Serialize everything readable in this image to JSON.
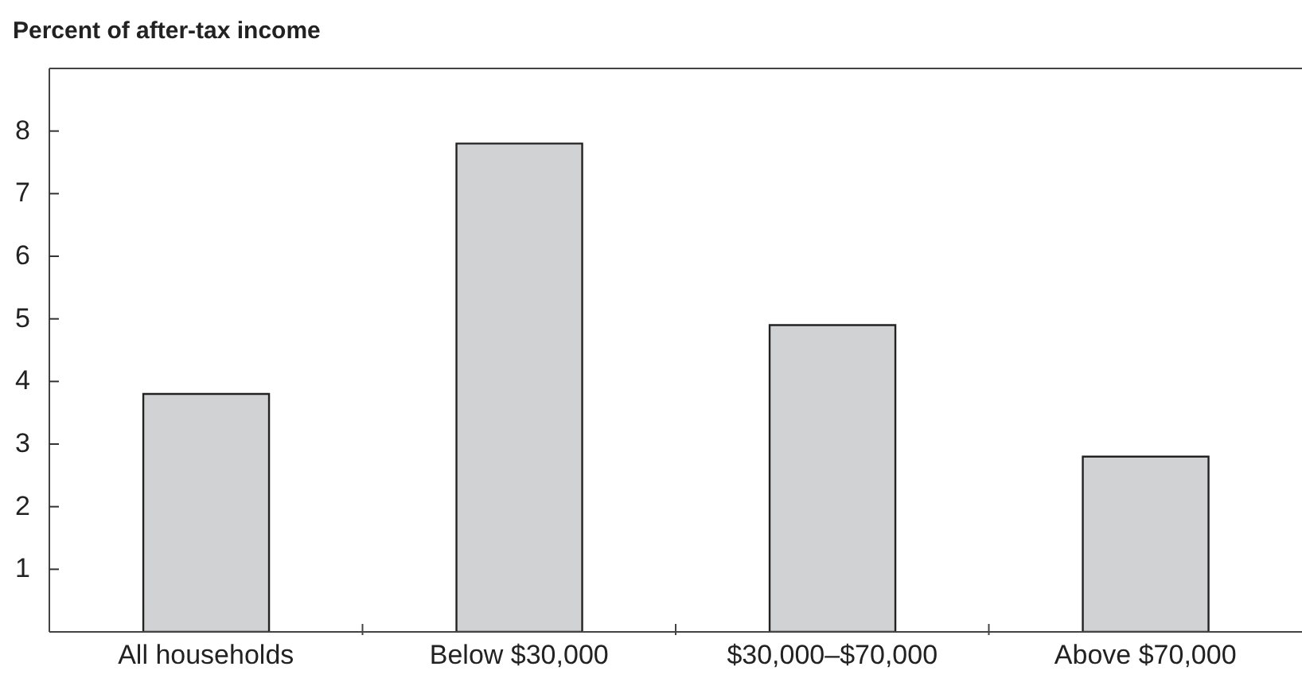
{
  "chart_data": {
    "type": "bar",
    "ylabel": "Percent of after-tax income",
    "categories": [
      "All households",
      "Below $30,000",
      "$30,000–$70,000",
      "Above $70,000"
    ],
    "values": [
      3.8,
      7.8,
      4.9,
      2.8
    ],
    "color": "#d1d2d4",
    "ylim": [
      0,
      9
    ],
    "yticks": [
      1,
      2,
      3,
      4,
      5,
      6,
      7,
      8
    ]
  }
}
